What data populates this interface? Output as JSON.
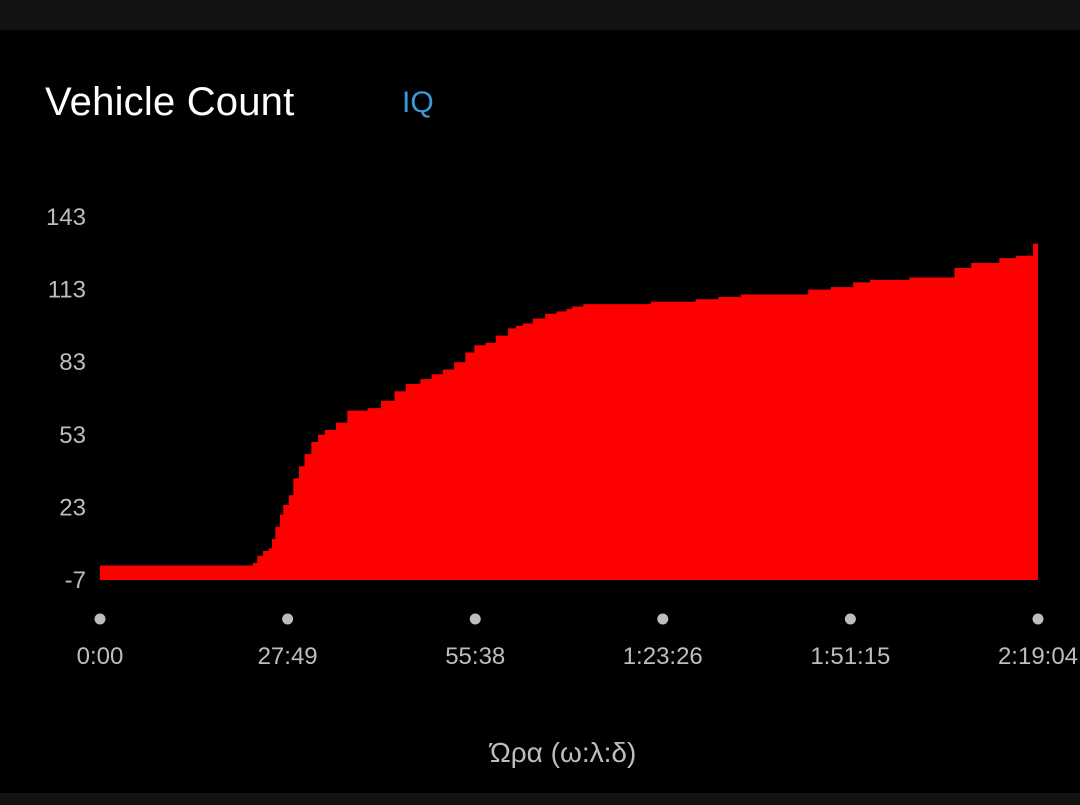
{
  "card": {
    "title": "Vehicle Count",
    "iq_label": "IQ"
  },
  "colors": {
    "background": "#000000",
    "area_fill": "#ff0000",
    "axis_text": "#bdbdbd",
    "tick_dot": "#bdbdbd",
    "iq_accent": "#3a9ad9",
    "title": "#ffffff"
  },
  "chart_data": {
    "type": "area",
    "title": "Vehicle Count",
    "xlabel": "Ώρα (ω:λ:δ)",
    "ylabel": "",
    "grid": false,
    "legend": "none",
    "xlim": [
      0,
      8344
    ],
    "ylim": [
      -7,
      143
    ],
    "yticks": [
      143,
      113,
      83,
      53,
      23,
      -7
    ],
    "xticks": [
      {
        "t": 0,
        "label": "0:00"
      },
      {
        "t": 1669,
        "label": "27:49"
      },
      {
        "t": 3338,
        "label": "55:38"
      },
      {
        "t": 5006,
        "label": "1:23:26"
      },
      {
        "t": 6675,
        "label": "1:51:15"
      },
      {
        "t": 8344,
        "label": "2:19:04"
      }
    ],
    "series": [
      {
        "x": [
          0,
          1320,
          1360,
          1400,
          1450,
          1500,
          1530,
          1560,
          1600,
          1630,
          1680,
          1720,
          1770,
          1820,
          1880,
          1940,
          2000,
          2100,
          2200,
          2380,
          2500,
          2620,
          2720,
          2850,
          2950,
          3050,
          3150,
          3250,
          3330,
          3430,
          3520,
          3630,
          3700,
          3760,
          3850,
          3960,
          4060,
          4150,
          4200,
          4300,
          4500,
          4700,
          4900,
          5100,
          5300,
          5500,
          5700,
          5900,
          6100,
          6300,
          6500,
          6700,
          6850,
          7000,
          7200,
          7400,
          7600,
          7750,
          7850,
          8000,
          8150,
          8300,
          8344
        ],
        "y": [
          -1,
          -1,
          0,
          3,
          5,
          6,
          10,
          15,
          20,
          24,
          28,
          35,
          40,
          45,
          50,
          53,
          55,
          58,
          63,
          64,
          67,
          71,
          74,
          76,
          78,
          80,
          83,
          87,
          90,
          91,
          94,
          97,
          98,
          99,
          101,
          103,
          104,
          105,
          106,
          107,
          107,
          107,
          108,
          108,
          109,
          110,
          111,
          111,
          111,
          113,
          114,
          116,
          117,
          117,
          118,
          118,
          122,
          124,
          124,
          126,
          127,
          132,
          134
        ]
      }
    ]
  }
}
